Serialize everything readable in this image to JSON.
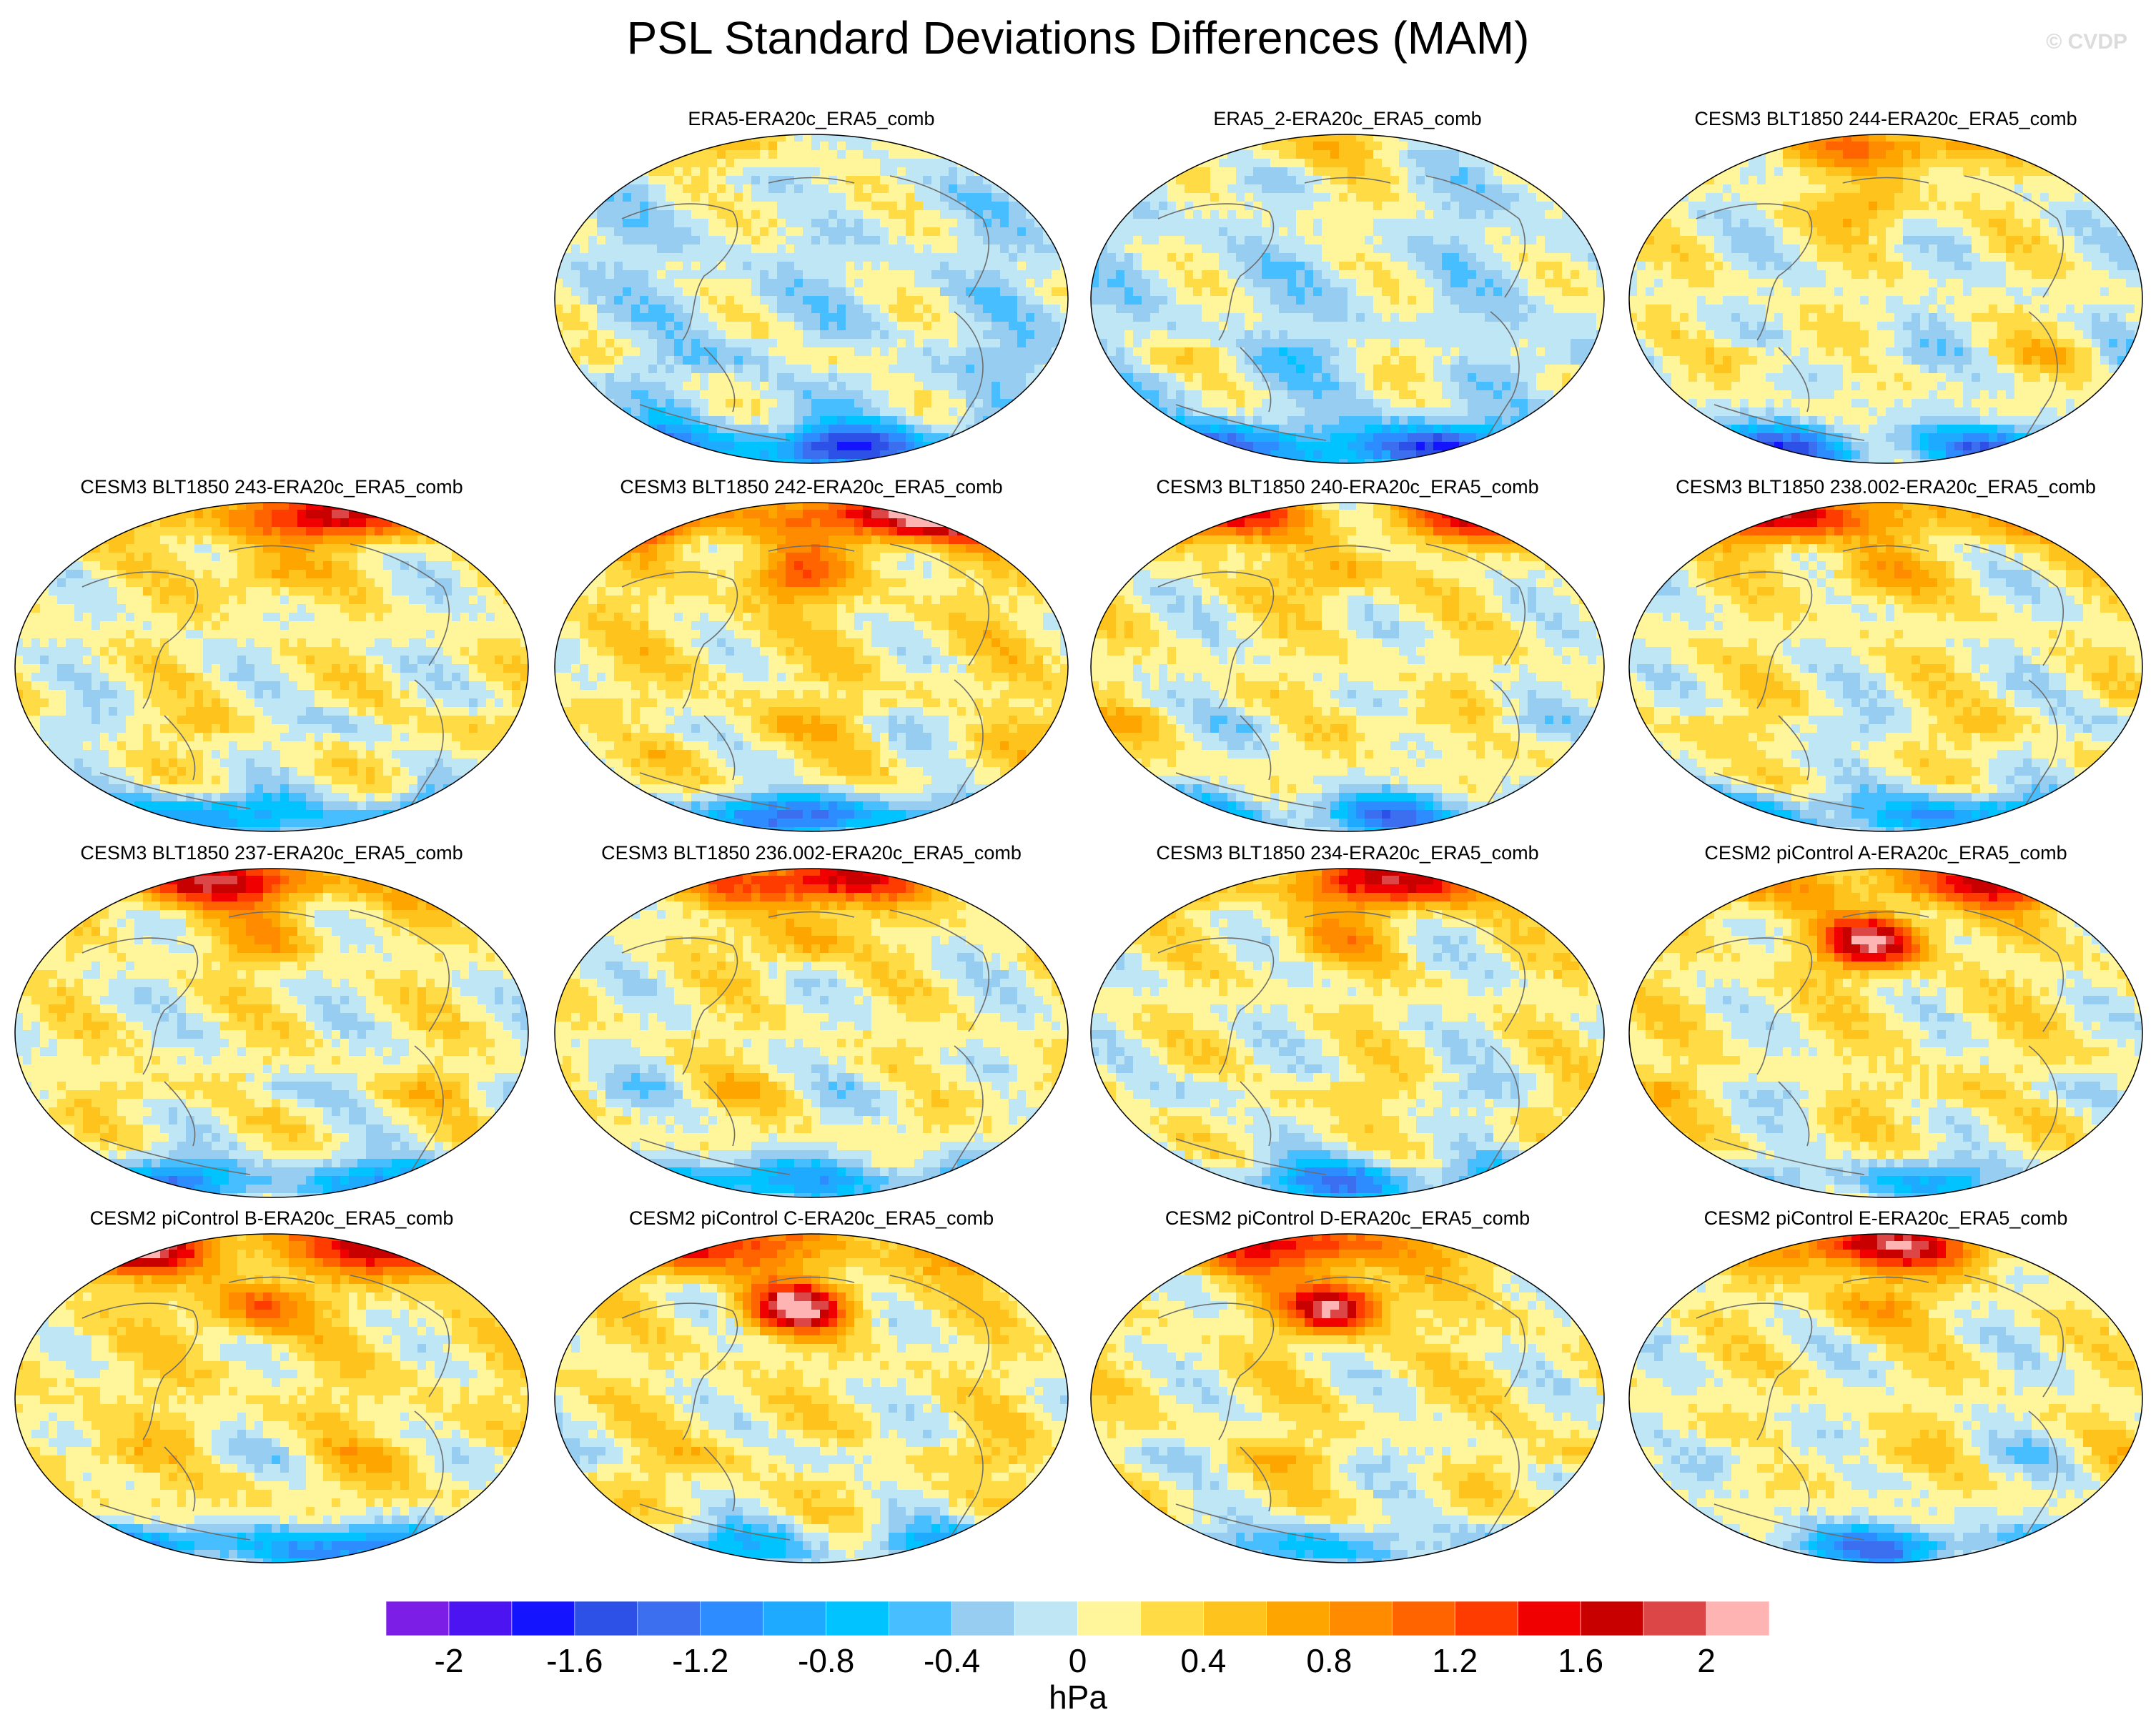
{
  "title": "PSL Standard Deviations Differences (MAM)",
  "watermark": "© CVDP",
  "panels": [
    {
      "title": "ERA5-ERA20c_ERA5_comb",
      "pattern": "neutral"
    },
    {
      "title": "ERA5_2-ERA20c_ERA5_comb",
      "pattern": "neutral"
    },
    {
      "title": "CESM3 BLT1850 244-ERA20c_ERA5_comb",
      "pattern": "moderate"
    },
    {
      "title": "CESM3 BLT1850 243-ERA20c_ERA5_comb",
      "pattern": "arctic"
    },
    {
      "title": "CESM3 BLT1850 242-ERA20c_ERA5_comb",
      "pattern": "strong-arctic"
    },
    {
      "title": "CESM3 BLT1850 240-ERA20c_ERA5_comb",
      "pattern": "arctic"
    },
    {
      "title": "CESM3 BLT1850 238.002-ERA20c_ERA5_comb",
      "pattern": "arctic"
    },
    {
      "title": "CESM3 BLT1850 237-ERA20c_ERA5_comb",
      "pattern": "arctic"
    },
    {
      "title": "CESM3 BLT1850 236.002-ERA20c_ERA5_comb",
      "pattern": "arctic"
    },
    {
      "title": "CESM3 BLT1850 234-ERA20c_ERA5_comb",
      "pattern": "arctic"
    },
    {
      "title": "CESM2 piControl A-ERA20c_ERA5_comb",
      "pattern": "pacific"
    },
    {
      "title": "CESM2 piControl B-ERA20c_ERA5_comb",
      "pattern": "strong-arctic"
    },
    {
      "title": "CESM2 piControl C-ERA20c_ERA5_comb",
      "pattern": "pacific"
    },
    {
      "title": "CESM2 piControl D-ERA20c_ERA5_comb",
      "pattern": "pacific"
    },
    {
      "title": "CESM2 piControl E-ERA20c_ERA5_comb",
      "pattern": "arctic"
    }
  ],
  "colorbar": {
    "levels": [
      -2.2,
      -2.0,
      -1.8,
      -1.6,
      -1.4,
      -1.2,
      -1.0,
      -0.8,
      -0.6,
      -0.4,
      -0.2,
      0,
      0.2,
      0.4,
      0.6,
      0.8,
      1.0,
      1.2,
      1.4,
      1.6,
      1.8,
      2.0,
      2.2
    ],
    "colors": [
      "#7d1ee6",
      "#4b14f0",
      "#1414ff",
      "#2d50e6",
      "#3c6ef0",
      "#2d8cff",
      "#1eaaff",
      "#00c3ff",
      "#46beff",
      "#96cdf0",
      "#bee6f5",
      "#fff59b",
      "#ffdc46",
      "#ffc31e",
      "#ffa500",
      "#ff8c00",
      "#ff6400",
      "#ff3c00",
      "#f00000",
      "#c80000",
      "#dc4646",
      "#ffb4b4"
    ],
    "tick_labels": [
      "-2",
      "-1.6",
      "-1.2",
      "-0.8",
      "-0.4",
      "0",
      "0.4",
      "0.8",
      "1.2",
      "1.6",
      "2"
    ],
    "tick_values": [
      -2,
      -1.6,
      -1.2,
      -0.8,
      -0.4,
      0,
      0.4,
      0.8,
      1.2,
      1.6,
      2
    ],
    "units": "hPa"
  }
}
